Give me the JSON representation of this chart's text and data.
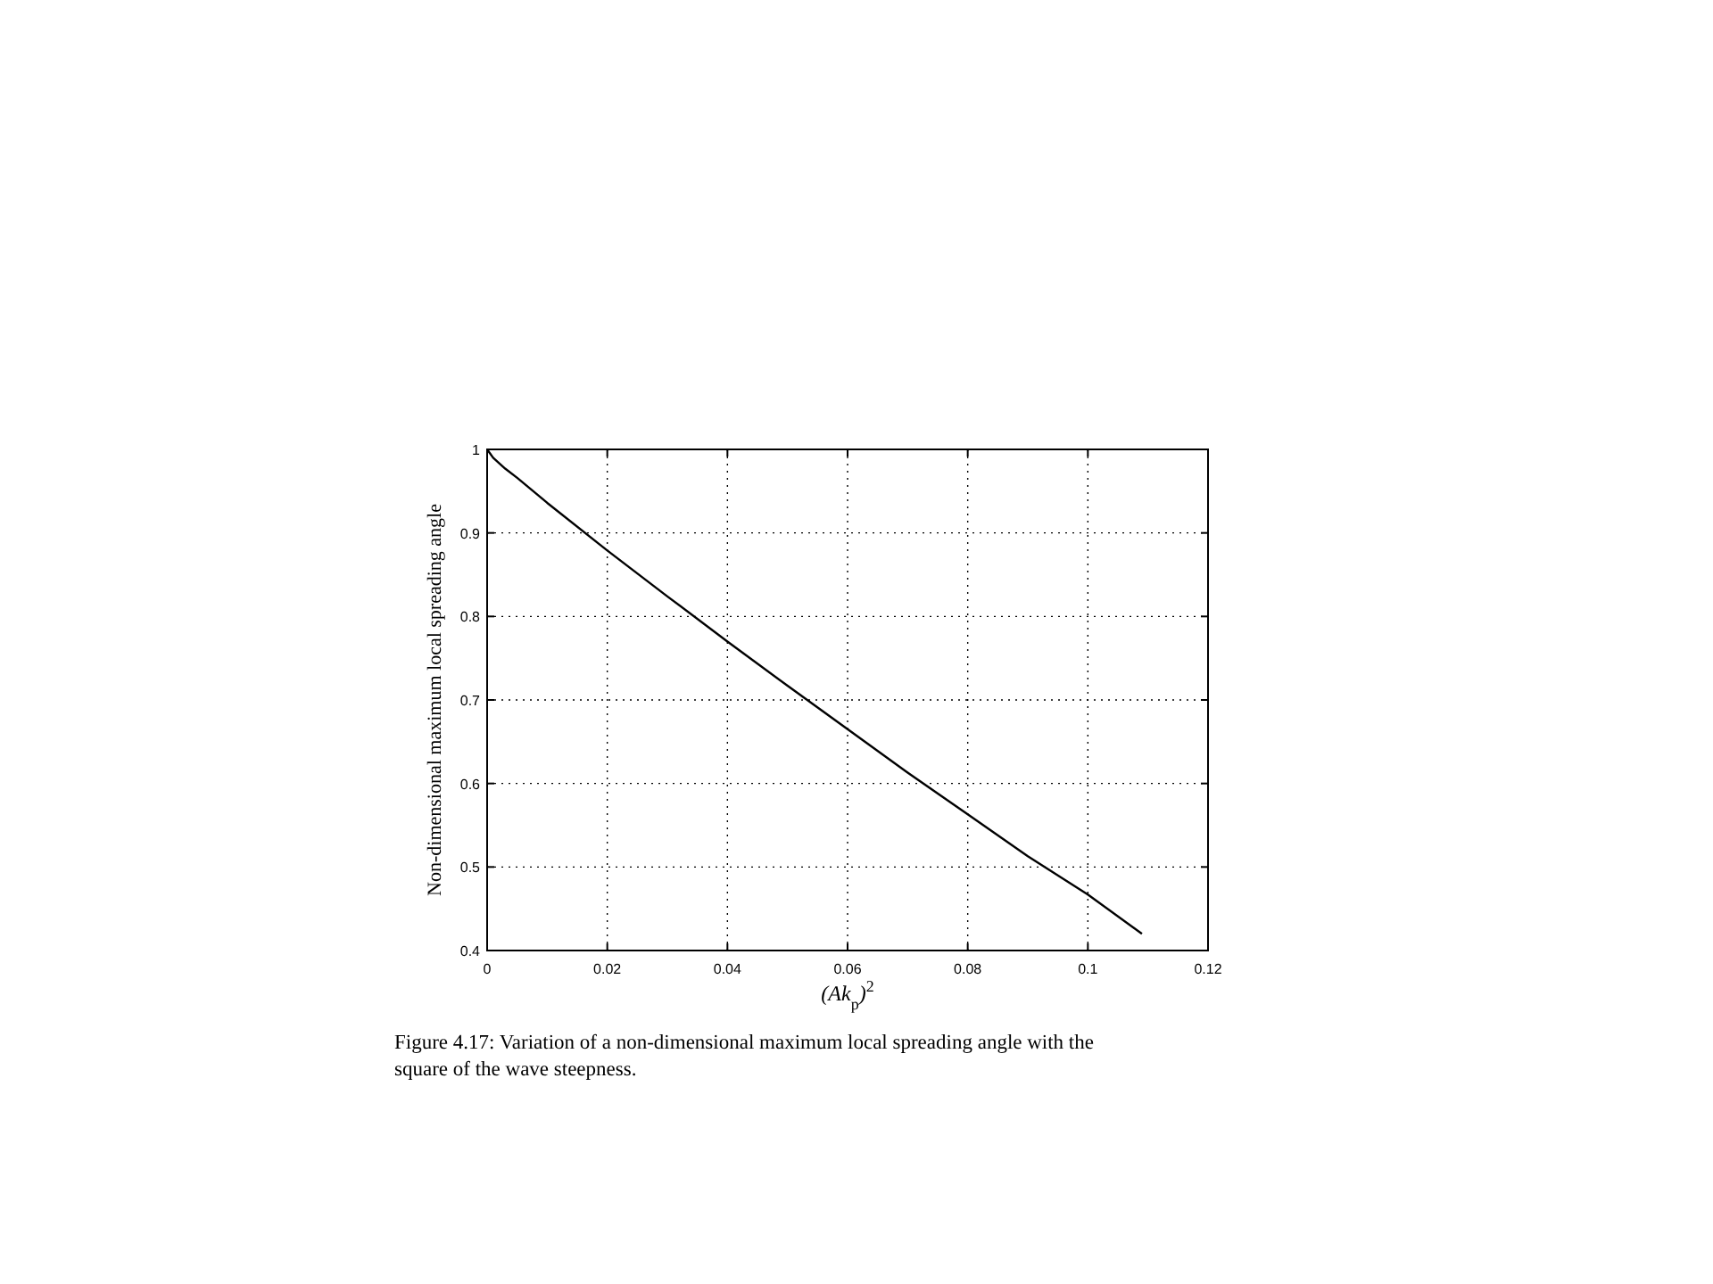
{
  "chart_data": {
    "type": "line",
    "xlabel": "(Ak$_{p}$)$^{2}$",
    "ylabel": "Non-dimensional maximum local spreading angle",
    "annotations": [
      "Figure 4.17: Variation of a non-dimensional maximum local spreading angle with the square of the wave steepness."
    ],
    "series": [
      {
        "color": "#000000",
        "x": [
          0,
          0.001,
          0.003,
          0.005,
          0.01,
          0.02,
          0.03,
          0.04,
          0.05,
          0.06,
          0.07,
          0.08,
          0.09,
          0.1,
          0.109
        ],
        "values": [
          1,
          0.99,
          0.977,
          0.966,
          0.936,
          0.879,
          0.824,
          0.77,
          0.717,
          0.665,
          0.613,
          0.563,
          0.513,
          0.467,
          0.42
        ]
      }
    ],
    "xlim": [
      0,
      0.12
    ],
    "xticks": [
      0,
      0.02,
      0.04,
      0.06,
      0.08,
      0.1,
      0.12
    ],
    "ylim": [
      0.4,
      1
    ],
    "yticks": [
      0.4,
      0.5,
      0.6,
      0.7,
      0.8,
      0.9,
      1
    ],
    "grid": true,
    "line_style": "solid",
    "marker": "none"
  }
}
